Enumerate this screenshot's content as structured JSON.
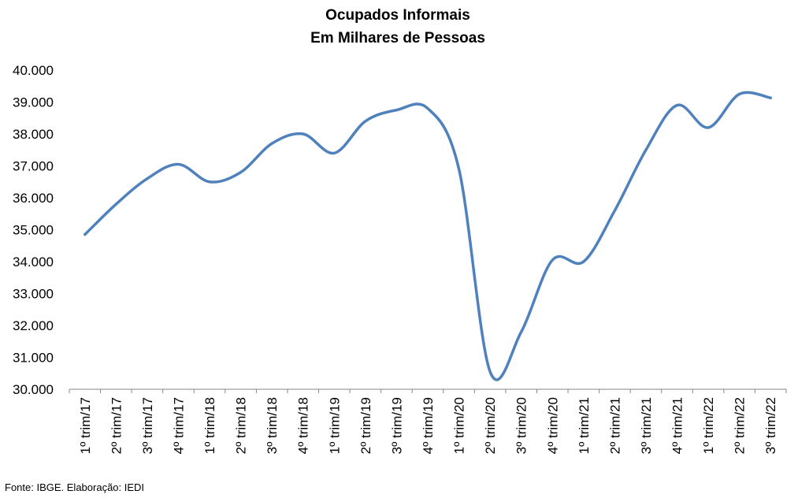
{
  "chart_data": {
    "type": "line",
    "title": "Ocupados Informais",
    "subtitle": "Em Milhares de Pessoas",
    "xlabel": "",
    "ylabel": "",
    "ylim": [
      30000,
      40000
    ],
    "ytick_step": 1000,
    "ytick_labels": [
      "30.000",
      "31.000",
      "32.000",
      "33.000",
      "34.000",
      "35.000",
      "36.000",
      "37.000",
      "38.000",
      "39.000",
      "40.000"
    ],
    "grid": false,
    "legend": "none",
    "categories": [
      "1º trim/17",
      "2º trim/17",
      "3º trim/17",
      "4º trim/17",
      "1º trim/18",
      "2º trim/18",
      "3º trim/18",
      "4º trim/18",
      "1º trim/19",
      "2º trim/19",
      "3º trim/19",
      "4º trim/19",
      "1º trim/20",
      "2º trim/20",
      "3º trim/20",
      "4º trim/20",
      "1º trim/21",
      "2º trim/21",
      "3º trim/21",
      "4º trim/21",
      "1º trim/22",
      "2º trim/22",
      "3º trim/22"
    ],
    "series": [
      {
        "color": "#4F81BD",
        "values": [
          34850,
          35800,
          36600,
          37050,
          36500,
          36800,
          37700,
          38000,
          37400,
          38400,
          38750,
          38800,
          36900,
          30550,
          31800,
          34050,
          34000,
          35600,
          37500,
          38900,
          38200,
          39250,
          39130
        ]
      }
    ]
  },
  "footer": {
    "source": "Fonte: IBGE. Elaboração: IEDI"
  }
}
